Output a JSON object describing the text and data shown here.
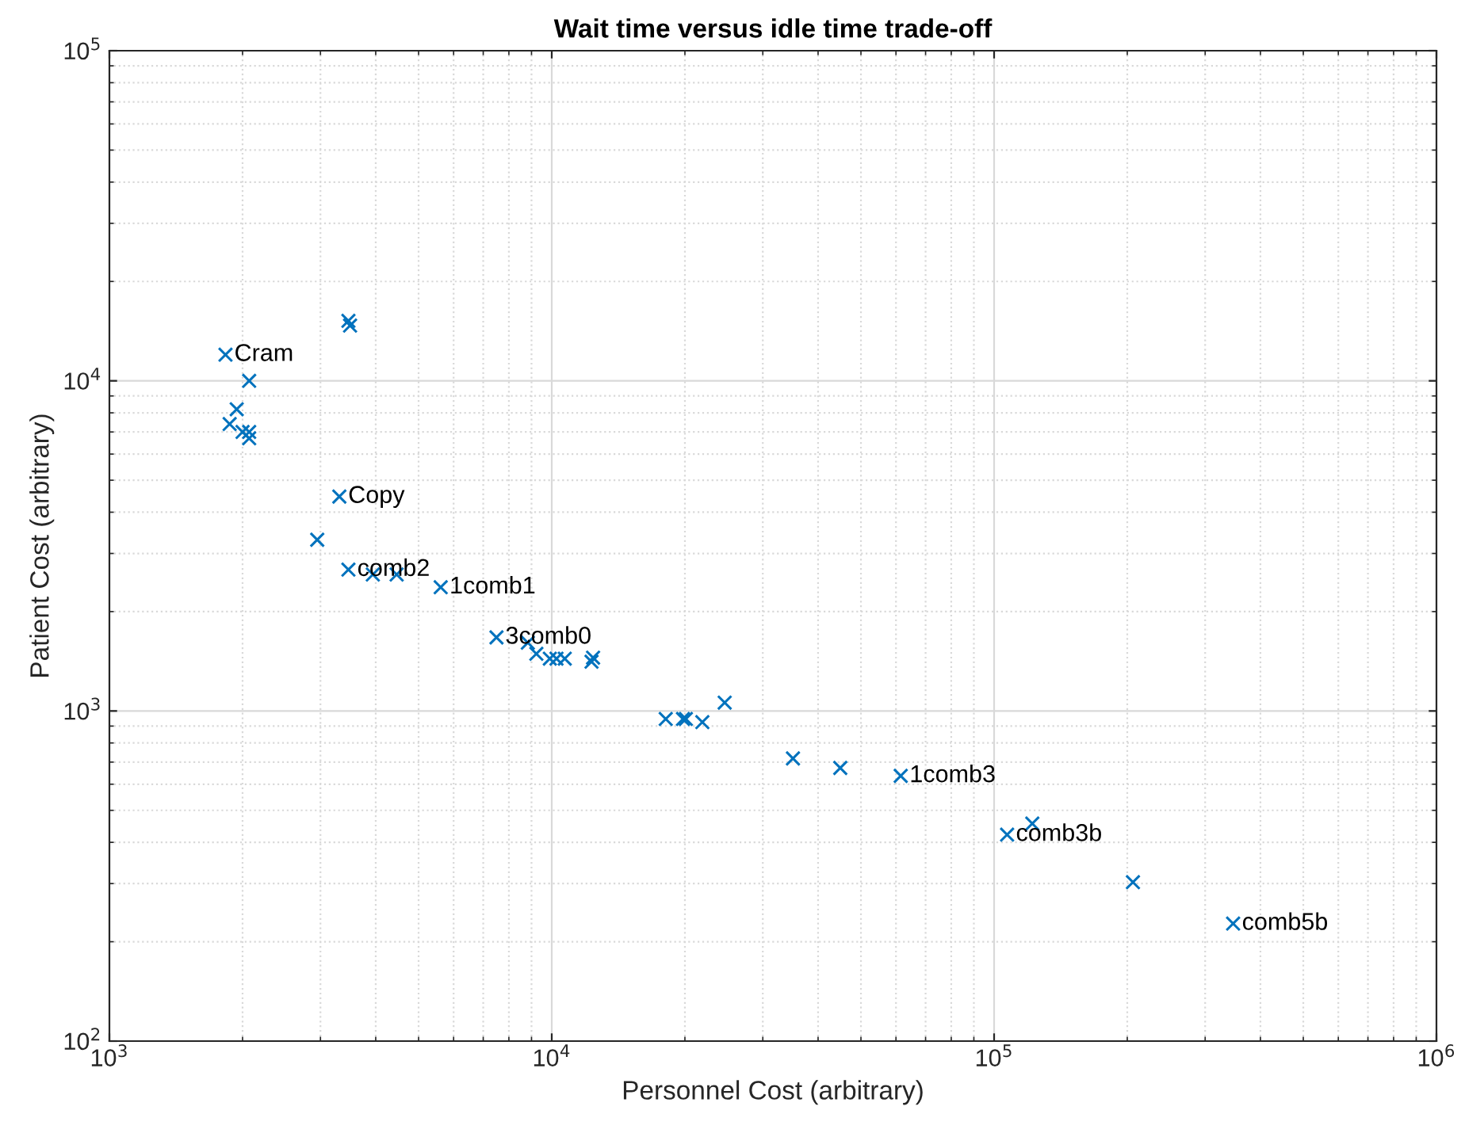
{
  "chart_data": {
    "type": "scatter",
    "title": "Wait time versus idle time trade-off",
    "xlabel": "Personnel Cost (arbitrary)",
    "ylabel": "Patient Cost (arbitrary)",
    "log": "xy",
    "grid": true,
    "marker": "cross",
    "xlim": [
      1000,
      1000000
    ],
    "ylim": [
      100,
      100000
    ],
    "xticks": [
      {
        "value": 1000,
        "label": "10$^{3}$"
      },
      {
        "value": 10000,
        "label": "10$^{4}$"
      },
      {
        "value": 100000,
        "label": "10$^{5}$"
      },
      {
        "value": 1000000,
        "label": "10$^{6}$"
      }
    ],
    "yticks": [
      {
        "value": 100,
        "label": "10$^{2}$"
      },
      {
        "value": 1000,
        "label": "10$^{3}$"
      },
      {
        "value": 10000,
        "label": "10$^{4}$"
      },
      {
        "value": 100000,
        "label": "10$^{5}$"
      }
    ],
    "series": [
      {
        "color": "#0072bd",
        "x": [
          1830,
          3470,
          3500,
          2070,
          1940,
          1870,
          2000,
          2040,
          2070,
          2070,
          3310,
          2950,
          3470,
          3940,
          4460,
          5610,
          7500,
          8830,
          9230,
          9900,
          10250,
          10700,
          12300,
          12400,
          18100,
          19800,
          20100,
          21900,
          24600,
          35100,
          44900,
          61500,
          107000,
          122000,
          206000,
          347000
        ],
        "values": [
          12000,
          15200,
          14700,
          10000,
          8200,
          7400,
          7000,
          null,
          6700,
          7000,
          4460,
          3300,
          2680,
          2590,
          2590,
          2370,
          1670,
          1610,
          1490,
          1440,
          1440,
          1440,
          1410,
          1450,
          946,
          946,
          946,
          925,
          1060,
          718,
          672,
          636,
          422,
          456,
          303,
          227
        ]
      }
    ],
    "annotations": [
      {
        "text": "Cram",
        "x": 1830,
        "y": 12000
      },
      {
        "text": "Copy",
        "x": 3310,
        "y": 4460
      },
      {
        "text": "comb2",
        "x": 3470,
        "y": 2680
      },
      {
        "text": "1comb1",
        "x": 5610,
        "y": 2370
      },
      {
        "text": "3comb0",
        "x": 7500,
        "y": 1670
      },
      {
        "text": "1comb3",
        "x": 61500,
        "y": 636
      },
      {
        "text": "comb3b",
        "x": 107000,
        "y": 422
      },
      {
        "text": "comb5b",
        "x": 347000,
        "y": 227
      }
    ]
  }
}
